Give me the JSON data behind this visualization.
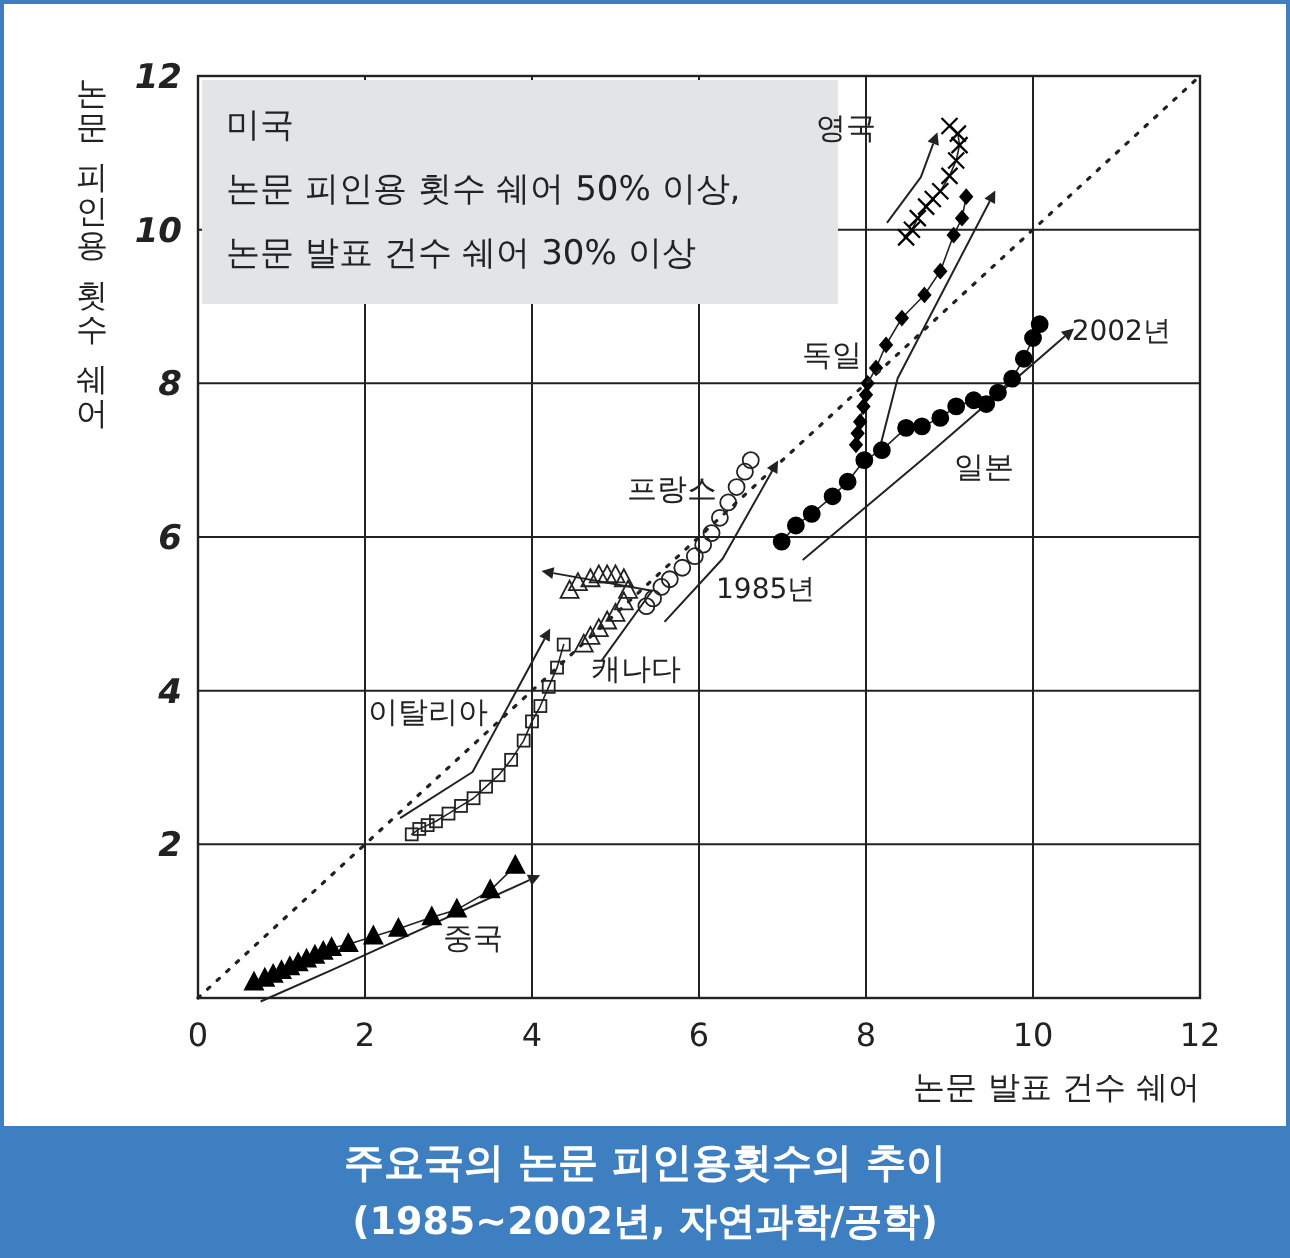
{
  "chart_data": {
    "type": "line",
    "title": "주요국의 논문 피인용횟수의 추이",
    "subtitle": "(1985~2002년, 자연과학/공학)",
    "xlabel": "논문 발표 건수 쉐어",
    "ylabel": "논문 피인용 횟수 쉐어",
    "xlim": [
      0,
      12
    ],
    "ylim": [
      0,
      12
    ],
    "xticks": [
      0,
      2,
      4,
      6,
      8,
      10,
      12
    ],
    "yticks": [
      2,
      4,
      6,
      8,
      10,
      12
    ],
    "grid": true,
    "annotations": [
      "미국\n논문 피인용 횟수 쉐어 50% 이상,\n논문 발표 건수 쉐어 30% 이상",
      {
        "text": "1985년",
        "x": 6.99,
        "y": 5.94
      },
      {
        "text": "2002년",
        "x": 10.08,
        "y": 8.77
      }
    ],
    "series": [
      {
        "name": "중국",
        "type": "line",
        "marker": "triangle",
        "color": "#000000",
        "x": [
          0.67,
          0.8,
          0.9,
          1.0,
          1.1,
          1.2,
          1.3,
          1.4,
          1.5,
          1.6,
          1.8,
          2.1,
          2.4,
          2.8,
          3.1,
          3.5,
          3.8
        ],
        "values": [
          0.2,
          0.25,
          0.3,
          0.35,
          0.4,
          0.45,
          0.5,
          0.55,
          0.6,
          0.65,
          0.7,
          0.8,
          0.9,
          1.05,
          1.15,
          1.4,
          1.72
        ]
      },
      {
        "name": "이탈리아",
        "type": "line",
        "marker": "square",
        "color": "#222222",
        "x": [
          2.56,
          2.65,
          2.75,
          2.85,
          3.0,
          3.15,
          3.3,
          3.45,
          3.6,
          3.75,
          3.9,
          4.0,
          4.1,
          4.2,
          4.3,
          4.38
        ],
        "values": [
          2.13,
          2.2,
          2.25,
          2.3,
          2.4,
          2.5,
          2.6,
          2.75,
          2.9,
          3.1,
          3.35,
          3.6,
          3.8,
          4.05,
          4.3,
          4.6
        ]
      },
      {
        "name": "캐나다",
        "type": "scatter",
        "marker": "triangle",
        "color": "#222222",
        "x": [
          4.62,
          4.7,
          4.8,
          4.9,
          5.0,
          5.1,
          5.15,
          5.1,
          5.0,
          4.9,
          4.8,
          4.7,
          4.55,
          4.45
        ],
        "values": [
          4.6,
          4.7,
          4.8,
          4.9,
          5.0,
          5.15,
          5.3,
          5.45,
          5.5,
          5.5,
          5.5,
          5.45,
          5.4,
          5.3
        ]
      },
      {
        "name": "프랑스",
        "type": "scatter",
        "marker": "circle",
        "color": "#222222",
        "x": [
          5.37,
          5.45,
          5.55,
          5.65,
          5.8,
          5.95,
          6.05,
          6.15,
          6.25,
          6.35,
          6.45,
          6.55,
          6.62
        ],
        "values": [
          5.1,
          5.2,
          5.35,
          5.45,
          5.6,
          5.75,
          5.9,
          6.05,
          6.25,
          6.45,
          6.65,
          6.85,
          7.0
        ]
      },
      {
        "name": "일본",
        "type": "line",
        "marker": "circle",
        "color": "#000000",
        "x": [
          6.99,
          7.16,
          7.35,
          7.6,
          7.78,
          7.98,
          8.19,
          8.48,
          8.67,
          8.89,
          9.08,
          9.29,
          9.44,
          9.58,
          9.75,
          9.89,
          10.0,
          10.08
        ],
        "values": [
          5.94,
          6.15,
          6.3,
          6.53,
          6.72,
          7.0,
          7.13,
          7.42,
          7.44,
          7.55,
          7.7,
          7.78,
          7.73,
          7.88,
          8.06,
          8.32,
          8.59,
          8.77
        ]
      },
      {
        "name": "독일",
        "type": "line",
        "marker": "diamond",
        "color": "#000000",
        "x": [
          7.88,
          7.9,
          7.93,
          7.97,
          8.0,
          8.02,
          8.12,
          8.24,
          8.43,
          8.7,
          8.89,
          9.05,
          9.15,
          9.2
        ],
        "values": [
          7.2,
          7.35,
          7.5,
          7.7,
          7.85,
          8.0,
          8.2,
          8.5,
          8.85,
          9.15,
          9.46,
          9.93,
          10.15,
          10.43
        ]
      },
      {
        "name": "영국",
        "type": "line",
        "marker": "cross",
        "color": "#000000",
        "x": [
          8.48,
          8.55,
          8.62,
          8.72,
          8.8,
          8.89,
          9.0,
          9.08,
          9.12,
          9.1,
          9.0
        ],
        "values": [
          9.9,
          10.0,
          10.15,
          10.3,
          10.4,
          10.5,
          10.7,
          10.9,
          11.1,
          11.25,
          11.35
        ]
      },
      {
        "type": "line",
        "marker": "none",
        "line_style": "dotted",
        "color": "#222222",
        "x": [
          0,
          12
        ],
        "values": [
          0,
          12
        ]
      }
    ]
  }
}
